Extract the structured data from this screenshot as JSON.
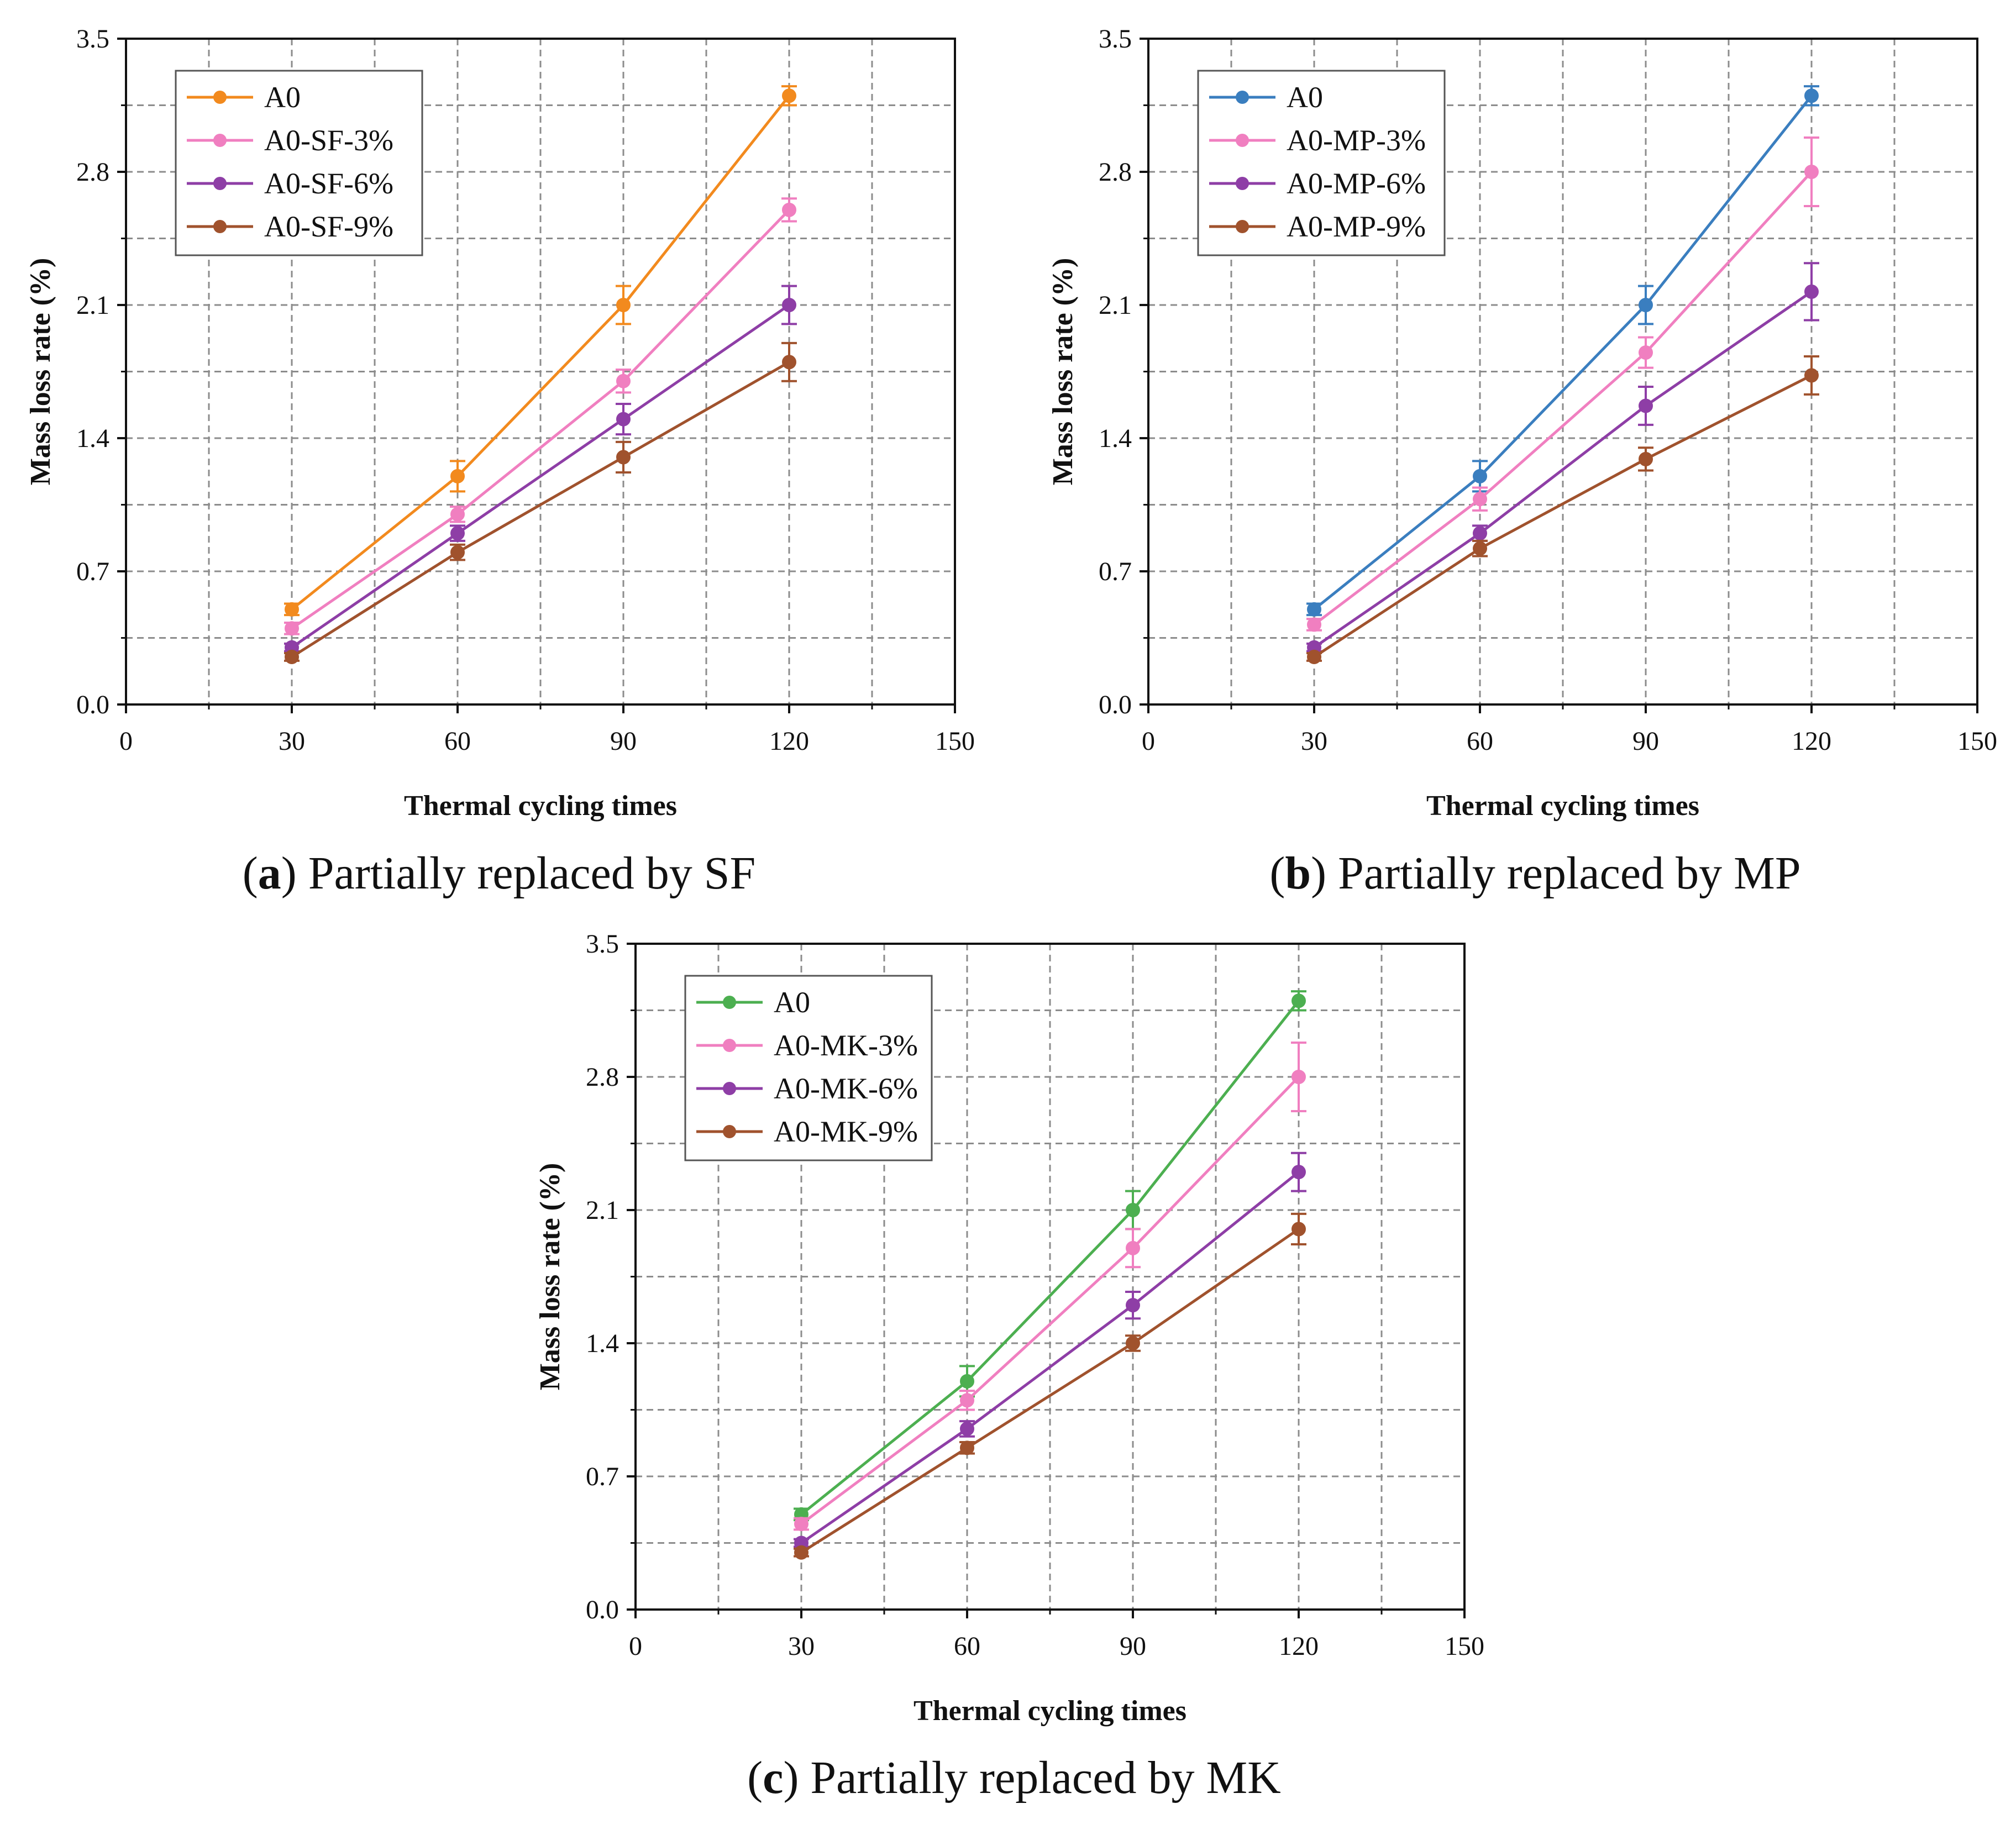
{
  "figure": {
    "captions": [
      {
        "letter": "a",
        "text": ") Partially replaced by SF"
      },
      {
        "letter": "b",
        "text": ") Partially replaced by MP"
      },
      {
        "letter": "c",
        "text": ") Partially replaced by MK"
      }
    ]
  },
  "chart_data": [
    {
      "type": "line",
      "panel": "a",
      "xlabel": "Thermal cycling times",
      "ylabel": "Mass loss rate (%)",
      "xlim": [
        0,
        150
      ],
      "ylim": [
        0,
        3.5
      ],
      "xticks": [
        0,
        30,
        60,
        90,
        120,
        150
      ],
      "yticks": [
        0.0,
        0.7,
        1.4,
        2.1,
        2.8,
        3.5
      ],
      "ytick_labels": [
        "0.0",
        "0.7",
        "1.4",
        "2.1",
        "2.8",
        "3.5"
      ],
      "grid": true,
      "legend_position": "top-left",
      "x": [
        30,
        60,
        90,
        120
      ],
      "series": [
        {
          "name": "A0",
          "color": "#f28a1e",
          "values": [
            0.5,
            1.2,
            2.1,
            3.2
          ],
          "errors": [
            0.03,
            0.08,
            0.1,
            0.05
          ]
        },
        {
          "name": "A0-SF-3%",
          "color": "#f07fc0",
          "values": [
            0.4,
            1.0,
            1.7,
            2.6
          ],
          "errors": [
            0.03,
            0.04,
            0.06,
            0.06
          ]
        },
        {
          "name": "A0-SF-6%",
          "color": "#8e3ea6",
          "values": [
            0.3,
            0.9,
            1.5,
            2.1
          ],
          "errors": [
            0.02,
            0.04,
            0.08,
            0.1
          ]
        },
        {
          "name": "A0-SF-9%",
          "color": "#a0522d",
          "values": [
            0.25,
            0.8,
            1.3,
            1.8
          ],
          "errors": [
            0.02,
            0.04,
            0.08,
            0.1
          ]
        }
      ]
    },
    {
      "type": "line",
      "panel": "b",
      "xlabel": "Thermal cycling times",
      "ylabel": "Mass loss rate (%)",
      "xlim": [
        0,
        150
      ],
      "ylim": [
        0,
        3.5
      ],
      "xticks": [
        0,
        30,
        60,
        90,
        120,
        150
      ],
      "yticks": [
        0.0,
        0.7,
        1.4,
        2.1,
        2.8,
        3.5
      ],
      "ytick_labels": [
        "0.0",
        "0.7",
        "1.4",
        "2.1",
        "2.8",
        "3.5"
      ],
      "grid": true,
      "legend_position": "top-left",
      "x": [
        30,
        60,
        90,
        120
      ],
      "series": [
        {
          "name": "A0",
          "color": "#3a7ebf",
          "values": [
            0.5,
            1.2,
            2.1,
            3.2
          ],
          "errors": [
            0.03,
            0.08,
            0.1,
            0.05
          ]
        },
        {
          "name": "A0-MP-3%",
          "color": "#f07fc0",
          "values": [
            0.42,
            1.08,
            1.85,
            2.8
          ],
          "errors": [
            0.03,
            0.06,
            0.08,
            0.18
          ]
        },
        {
          "name": "A0-MP-6%",
          "color": "#8e3ea6",
          "values": [
            0.3,
            0.9,
            1.57,
            2.17
          ],
          "errors": [
            0.02,
            0.04,
            0.1,
            0.15
          ]
        },
        {
          "name": "A0-MP-9%",
          "color": "#a0522d",
          "values": [
            0.25,
            0.82,
            1.29,
            1.73
          ],
          "errors": [
            0.02,
            0.04,
            0.06,
            0.1
          ]
        }
      ]
    },
    {
      "type": "line",
      "panel": "c",
      "xlabel": "Thermal cycling times",
      "ylabel": "Mass loss rate (%)",
      "xlim": [
        0,
        150
      ],
      "ylim": [
        0,
        3.5
      ],
      "xticks": [
        0,
        30,
        60,
        90,
        120,
        150
      ],
      "yticks": [
        0.0,
        0.7,
        1.4,
        2.1,
        2.8,
        3.5
      ],
      "ytick_labels": [
        "0.0",
        "0.7",
        "1.4",
        "2.1",
        "2.8",
        "3.5"
      ],
      "grid": true,
      "legend_position": "top-left",
      "x": [
        30,
        60,
        90,
        120
      ],
      "series": [
        {
          "name": "A0",
          "color": "#4caf50",
          "values": [
            0.5,
            1.2,
            2.1,
            3.2
          ],
          "errors": [
            0.03,
            0.08,
            0.1,
            0.05
          ]
        },
        {
          "name": "A0-MK-3%",
          "color": "#f07fc0",
          "values": [
            0.45,
            1.1,
            1.9,
            2.8
          ],
          "errors": [
            0.03,
            0.05,
            0.1,
            0.18
          ]
        },
        {
          "name": "A0-MK-6%",
          "color": "#8e3ea6",
          "values": [
            0.35,
            0.95,
            1.6,
            2.3
          ],
          "errors": [
            0.02,
            0.04,
            0.07,
            0.1
          ]
        },
        {
          "name": "A0-MK-9%",
          "color": "#a0522d",
          "values": [
            0.3,
            0.85,
            1.4,
            2.0
          ],
          "errors": [
            0.02,
            0.03,
            0.04,
            0.08
          ]
        }
      ]
    }
  ]
}
